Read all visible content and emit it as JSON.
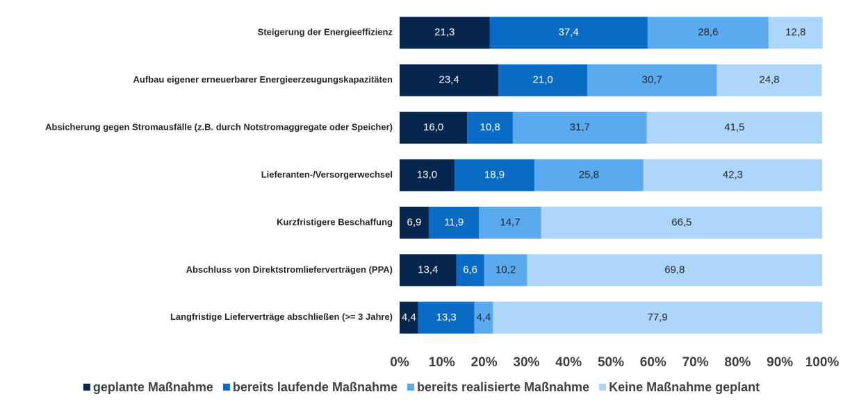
{
  "chart_data": {
    "type": "stacked-barh",
    "categories": [
      "Steigerung der Energieeffizienz",
      "Aufbau eigener erneuerbarer Energieerzeugungskapazitäten",
      "Absicherung gegen Stromausfälle (z.B. durch Notstromaggregate oder Speicher)",
      "Lieferanten-/Versorgerwechsel",
      "Kurzfristigere Beschaffung",
      "Abschluss von Direktstromlieferverträgen (PPA)",
      "Langfristige Lieferverträge abschließen (>= 3 Jahre)"
    ],
    "series": [
      {
        "name": "geplante Maßnahme",
        "color": "#06264d",
        "values": [
          21.3,
          23.4,
          16.0,
          13.0,
          6.9,
          13.4,
          4.4
        ],
        "value_labels": [
          "21,3",
          "23,4",
          "16,0",
          "13,0",
          "6,9",
          "13,4",
          "4,4"
        ]
      },
      {
        "name": "bereits laufende Maßnahme",
        "color": "#0a6bc4",
        "values": [
          37.4,
          21.0,
          10.8,
          18.9,
          11.9,
          6.6,
          13.3
        ],
        "value_labels": [
          "37,4",
          "21,0",
          "10,8",
          "18,9",
          "11,9",
          "6,6",
          "13,3"
        ]
      },
      {
        "name": "bereits realisierte Maßnahme",
        "color": "#5aaaf0",
        "values": [
          28.6,
          30.7,
          31.7,
          25.8,
          14.7,
          10.2,
          4.4
        ],
        "value_labels": [
          "28,6",
          "30,7",
          "31,7",
          "25,8",
          "14,7",
          "10,2",
          "4,4"
        ]
      },
      {
        "name": "Keine Maßnahme geplant",
        "color": "#add6fb",
        "values": [
          12.8,
          24.8,
          41.5,
          42.3,
          66.5,
          69.8,
          77.9
        ],
        "value_labels": [
          "12,8",
          "24,8",
          "41,5",
          "42,3",
          "66,5",
          "69,8",
          "77,9"
        ]
      }
    ],
    "xlim": [
      0,
      100
    ],
    "xticks": [
      {
        "value": 0,
        "label": "0%"
      },
      {
        "value": 10,
        "label": "10%"
      },
      {
        "value": 20,
        "label": "20%"
      },
      {
        "value": 30,
        "label": "30%"
      },
      {
        "value": 40,
        "label": "40%"
      },
      {
        "value": 50,
        "label": "50%"
      },
      {
        "value": 60,
        "label": "60%"
      },
      {
        "value": 70,
        "label": "70%"
      },
      {
        "value": 80,
        "label": "80%"
      },
      {
        "value": 90,
        "label": "90%"
      },
      {
        "value": 100,
        "label": "100%"
      }
    ],
    "grid": false,
    "legend": "bottom"
  }
}
